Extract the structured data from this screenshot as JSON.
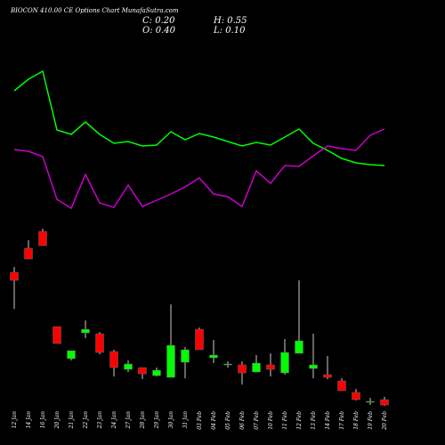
{
  "chart_data": {
    "type": "candlestick",
    "title": "BIOCON 410.00 CE Options Chart MunafaSutra.com",
    "ohlc_texts": {
      "close": "C: 0.20",
      "high": "H: 0.55",
      "open": "O: 0.40",
      "low": "L: 0.10"
    },
    "categories": [
      "12 Jan",
      "14 Jan",
      "16 Jan",
      "20 Jan",
      "21 Jan",
      "22 Jan",
      "23 Jan",
      "24 Jan",
      "27 Jan",
      "28 Jan",
      "29 Jan",
      "30 Jan",
      "31 Jan",
      "03 Feb",
      "04 Feb",
      "05 Feb",
      "06 Feb",
      "07 Feb",
      "10 Feb",
      "11 Feb",
      "12 Feb",
      "13 Feb",
      "14 Feb",
      "17 Feb",
      "18 Feb",
      "19 Feb",
      "20 Feb"
    ],
    "open": [
      154,
      181,
      200,
      93,
      57,
      86,
      85,
      65,
      45,
      47,
      38,
      36,
      53,
      90,
      58,
      50,
      50,
      42,
      50,
      41,
      63,
      46,
      39,
      32,
      19,
      8,
      11
    ],
    "close": [
      145,
      169,
      184,
      74,
      66,
      90,
      64,
      47,
      51,
      40,
      44,
      72,
      67,
      67,
      61,
      51,
      41,
      52,
      45,
      64,
      77,
      50,
      36,
      21,
      11,
      9,
      5
    ],
    "high": [
      160,
      190,
      203,
      93,
      66,
      100,
      87,
      67,
      55,
      47,
      47,
      118,
      70,
      92,
      78,
      54,
      54,
      61,
      63,
      79,
      145,
      85,
      60,
      35,
      23,
      13,
      14
    ],
    "low": [
      113,
      169,
      184,
      74,
      55,
      80,
      62,
      37,
      42,
      34,
      37,
      36,
      35,
      67,
      52,
      47,
      28,
      42,
      37,
      39,
      63,
      35,
      34,
      21,
      10,
      5,
      4
    ],
    "up_color": "#00ff00",
    "down_color": "#ff0000",
    "ylim": [
      0,
      460
    ],
    "series": [
      {
        "color": "#00ff00",
        "axis": "y2",
        "values": [
          158,
          171,
          180,
          114,
          109,
          123,
          109,
          99,
          101,
          96,
          97,
          112,
          103,
          110,
          106,
          101,
          96,
          100,
          97,
          106,
          115,
          99,
          91,
          82,
          77,
          75,
          74
        ]
      },
      {
        "color": "#cc00cc",
        "axis": "y2",
        "values": [
          92,
          90,
          84,
          36,
          26,
          64,
          32,
          27,
          52,
          28,
          35,
          42,
          50,
          60,
          42,
          39,
          28,
          68,
          54,
          74,
          73,
          85,
          96,
          93,
          91,
          108,
          115
        ]
      }
    ],
    "y2lim": [
      0,
      260
    ]
  }
}
